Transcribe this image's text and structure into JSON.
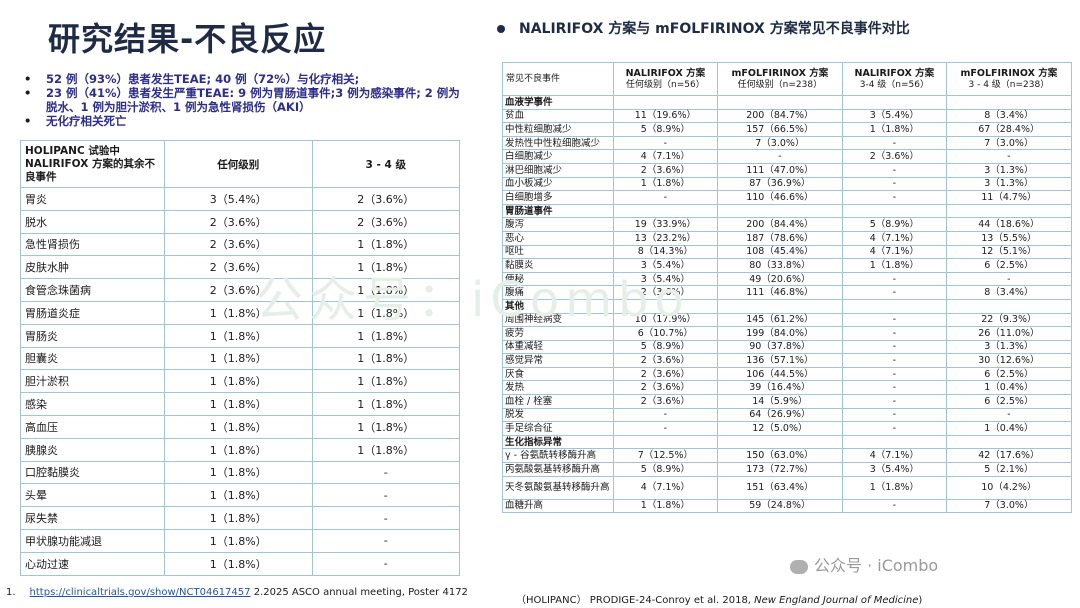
{
  "title": "研究结果-不良反应",
  "bullets": [
    "52 例（93%）患者发生TEAE; 40 例（72%）与化疗相关;",
    "23 例（41%）患者发生严重TEAE: 9 例为胃肠道事件;3 例为感染事件; 2 例为脱水、1 例为胆汁淤积、1 例为急性肾损伤（AKI）",
    "无化疗相关死亡"
  ],
  "left_table": {
    "headers": [
      "HOLIPANC 试验中 NALIRIFOX 方案的其余不良事件",
      "任何级别",
      "3 - 4 级"
    ],
    "rows": [
      [
        "胃炎",
        "3（5.4%）",
        "2（3.6%）"
      ],
      [
        "脱水",
        "2（3.6%）",
        "2（3.6%）"
      ],
      [
        "急性肾损伤",
        "2（3.6%）",
        "1（1.8%）"
      ],
      [
        "皮肤水肿",
        "2（3.6%）",
        "1（1.8%）"
      ],
      [
        "食管念珠菌病",
        "2（3.6%）",
        "1（1.8%）"
      ],
      [
        "胃肠道炎症",
        "1（1.8%）",
        "1（1.8%）"
      ],
      [
        "胃肠炎",
        "1（1.8%）",
        "1（1.8%）"
      ],
      [
        "胆囊炎",
        "1（1.8%）",
        "1（1.8%）"
      ],
      [
        "胆汁淤积",
        "1（1.8%）",
        "1（1.8%）"
      ],
      [
        "感染",
        "1（1.8%）",
        "1（1.8%）"
      ],
      [
        "高血压",
        "1（1.8%）",
        "1（1.8%）"
      ],
      [
        "胰腺炎",
        "1（1.8%）",
        "1（1.8%）"
      ],
      [
        "口腔黏膜炎",
        "1（1.8%）",
        "-"
      ],
      [
        "头晕",
        "1（1.8%）",
        "-"
      ],
      [
        "尿失禁",
        "1（1.8%）",
        "-"
      ],
      [
        "甲状腺功能减退",
        "1（1.8%）",
        "-"
      ],
      [
        "心动过速",
        "1（1.8%）",
        "-"
      ]
    ]
  },
  "right_heading": "NALIRIFOX 方案与 mFOLFIRINOX 方案常见不良事件对比",
  "right_table": {
    "headers": [
      {
        "main": "常见不良事件",
        "sub": ""
      },
      {
        "main": "NALIRIFOX 方案",
        "sub": "任何级别（n=56）"
      },
      {
        "main": "mFOLFIRINOX 方案",
        "sub": "任何级别（n=238）"
      },
      {
        "main": "NALIRIFOX 方案",
        "sub": "3-4 级（n=56）"
      },
      {
        "main": "mFOLFIRINOX 方案",
        "sub": "3 - 4 级（n=238）"
      }
    ],
    "rows": [
      {
        "section": "血液学事件"
      },
      {
        "cells": [
          "贫血",
          "11（19.6%）",
          "200（84.7%）",
          "3（5.4%）",
          "8（3.4%）"
        ]
      },
      {
        "cells": [
          "中性粒细胞减少",
          "5（8.9%）",
          "157（66.5%）",
          "1（1.8%）",
          "67（28.4%）"
        ]
      },
      {
        "cells": [
          "发热性中性粒细胞减少",
          "-",
          "7（3.0%）",
          "-",
          "7（3.0%）"
        ]
      },
      {
        "cells": [
          "白细胞减少",
          "4（7.1%）",
          "-",
          "2（3.6%）",
          "-"
        ]
      },
      {
        "cells": [
          "淋巴细胞减少",
          "2（3.6%）",
          "111（47.0%）",
          "-",
          "3（1.3%）"
        ]
      },
      {
        "cells": [
          "血小板减少",
          "1（1.8%）",
          "87（36.9%）",
          "-",
          "3（1.3%）"
        ]
      },
      {
        "cells": [
          "白细胞增多",
          "-",
          "110（46.6%）",
          "-",
          "11（4.7%）"
        ]
      },
      {
        "section": "胃肠道事件"
      },
      {
        "cells": [
          "腹泻",
          "19（33.9%）",
          "200（84.4%）",
          "5（8.9%）",
          "44（18.6%）"
        ]
      },
      {
        "cells": [
          "恶心",
          "13（23.2%）",
          "187（78.6%）",
          "4（7.1%）",
          "13（5.5%）"
        ]
      },
      {
        "cells": [
          "呕吐",
          "8（14.3%）",
          "108（45.4%）",
          "4（7.1%）",
          "12（5.1%）"
        ]
      },
      {
        "cells": [
          "黏膜炎",
          "3（5.4%）",
          "80（33.8%）",
          "1（1.8%）",
          "6（2.5%）"
        ]
      },
      {
        "cells": [
          "便秘",
          "3（5.4%）",
          "49（20.6%）",
          "-",
          "-"
        ]
      },
      {
        "cells": [
          "腹痛",
          "2（3.6%）",
          "111（46.8%）",
          "-",
          "8（3.4%）"
        ]
      },
      {
        "section": "其他"
      },
      {
        "cells": [
          "周围神经病变",
          "10（17.9%）",
          "145（61.2%）",
          "-",
          "22（9.3%）"
        ]
      },
      {
        "cells": [
          "疲劳",
          "6（10.7%）",
          "199（84.0%）",
          "-",
          "26（11.0%）"
        ]
      },
      {
        "cells": [
          "体重减轻",
          "5（8.9%）",
          "90（37.8%）",
          "-",
          "3（1.3%）"
        ]
      },
      {
        "cells": [
          "感觉异常",
          "2（3.6%）",
          "136（57.1%）",
          "-",
          "30（12.6%）"
        ]
      },
      {
        "cells": [
          "厌食",
          "2（3.6%）",
          "106（44.5%）",
          "-",
          "6（2.5%）"
        ]
      },
      {
        "cells": [
          "发热",
          "2（3.6%）",
          "39（16.4%）",
          "-",
          "1（0.4%）"
        ]
      },
      {
        "cells": [
          "血栓 / 栓塞",
          "2（3.6%）",
          "14（5.9%）",
          "-",
          "6（2.5%）"
        ]
      },
      {
        "cells": [
          "脱发",
          "-",
          "64（26.9%）",
          "-",
          "-"
        ]
      },
      {
        "cells": [
          "手足综合征",
          "-",
          "12（5.0%）",
          "-",
          "1（0.4%）"
        ]
      },
      {
        "section": "生化指标异常"
      },
      {
        "cells": [
          "γ - 谷氨酰转移酶升高",
          "7（12.5%）",
          "150（63.0%）",
          "4（7.1%）",
          "42（17.6%）"
        ]
      },
      {
        "cells": [
          "丙氨酸氨基转移酶升高",
          "5（8.9%）",
          "173（72.7%）",
          "3（5.4%）",
          "5（2.1%）"
        ]
      },
      {
        "cells": [
          "天冬氨酸氨基转移酶升高",
          "4（7.1%）",
          "151（63.4%）",
          "1（1.8%）",
          "10（4.2%）"
        ],
        "tall": true
      },
      {
        "cells": [
          "血糖升高",
          "1（1.8%）",
          "59（24.8%）",
          "-",
          "7（3.0%）"
        ]
      }
    ]
  },
  "footnote_left": {
    "number": "1.",
    "link": "https://clinicaltrials.gov/show/NCT04617457",
    "text": "2.2025 ASCO annual meeting,  Poster 4172"
  },
  "footnote_right": {
    "prefix": "（HOLIPANC） PRODIGE-24-Conroy et al. 2018, ",
    "journal": "New England Journal of Medicine",
    "suffix": ")"
  },
  "watermark_center": "公众号：iCombo",
  "watermark_corner": "公众号 · iCombo"
}
